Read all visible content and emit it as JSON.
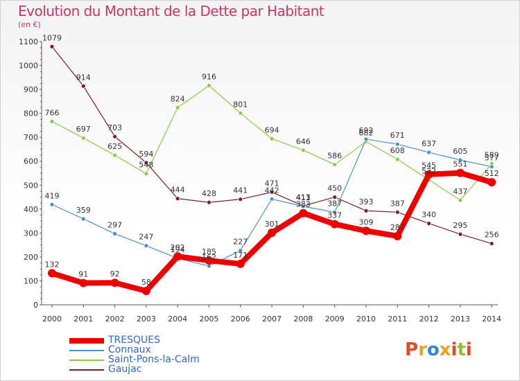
{
  "title": "Evolution du Montant de la Dette par Habitant",
  "subtitle": "(en €)",
  "logo_text": "Proxiti",
  "logo_colors": [
    "#e04a2a",
    "#f0a020",
    "#2a8ad0",
    "#f0a020",
    "#e04a2a",
    "#90c030",
    "#e04a2a"
  ],
  "chart_data": {
    "type": "line",
    "x": [
      "2000",
      "2001",
      "2002",
      "2003",
      "2004",
      "2005",
      "2006",
      "2007",
      "2008",
      "2009",
      "2010",
      "2011",
      "2012",
      "2013",
      "2014"
    ],
    "ylim": [
      0,
      1100
    ],
    "yticks": [
      0,
      100,
      200,
      300,
      400,
      500,
      600,
      700,
      800,
      900,
      1000,
      1100
    ],
    "grid": false,
    "legend_position": "bottom-left",
    "series": [
      {
        "name": "Gaujac",
        "color": "#7a1f1f",
        "values": [
          1079,
          914,
          703,
          594,
          444,
          428,
          441,
          471,
          413,
          450,
          393,
          387,
          340,
          295,
          256
        ]
      },
      {
        "name": "Saint-Pons-la-Calm",
        "color": "#88cc44",
        "values": [
          766,
          697,
          625,
          548,
          824,
          916,
          801,
          694,
          646,
          586,
          682,
          608,
          522,
          437,
          589
        ]
      },
      {
        "name": "Connaux",
        "color": "#4a90c8",
        "values": [
          419,
          359,
          297,
          247,
          194,
          162,
          227,
          442,
          411,
          387,
          692,
          671,
          637,
          605,
          577
        ]
      },
      {
        "name": "TRESQUES",
        "color": "#ee0000",
        "values": [
          132,
          91,
          92,
          58,
          202,
          185,
          171,
          301,
          383,
          337,
          309,
          287,
          545,
          551,
          512
        ]
      }
    ],
    "legend": [
      {
        "name": "TRESQUES",
        "color": "#ee0000"
      },
      {
        "name": "Connaux",
        "color": "#4a90c8"
      },
      {
        "name": "Saint-Pons-la-Calm",
        "color": "#88cc44"
      },
      {
        "name": "Gaujac",
        "color": "#7a1f1f"
      }
    ]
  }
}
